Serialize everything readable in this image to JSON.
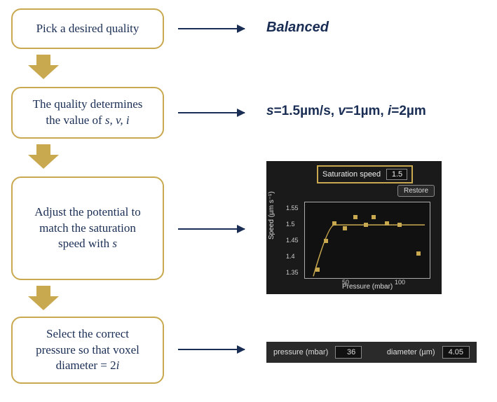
{
  "colors": {
    "box_border": "#c9a94f",
    "box_bg": "#ffffff",
    "text_primary": "#1a2e55",
    "arrow_fill": "#c9a94f",
    "connector": "#1a2e55",
    "panel_bg": "#1a1a1a",
    "panel_bg2": "#2a2a2a",
    "plot_bg": "#111111",
    "marker": "#c9a94f",
    "tick_text": "#cccccc"
  },
  "boxes": {
    "b1": "Pick a desired quality",
    "b2": "The quality determines the value of s, v, i",
    "b3": "Adjust the potential to match the saturation speed with s",
    "b4": "Select the correct pressure so that voxel diameter = 2i"
  },
  "results": {
    "r1": "Balanced",
    "r2_parts": {
      "s_lbl": "s",
      "s_eq": "=1.5µm/s, ",
      "v_lbl": "v",
      "v_eq": "=1µm, ",
      "i_lbl": "i",
      "i_eq": "=2µm"
    }
  },
  "chart": {
    "sat_label": "Saturation speed",
    "sat_value": "1.5",
    "restore": "Restore",
    "xlabel": "Pressure (mbar)",
    "ylabel": "Speed (µm s⁻¹)",
    "xlim": [
      10,
      130
    ],
    "ylim": [
      1.33,
      1.57
    ],
    "xticks": [
      50,
      100
    ],
    "yticks": [
      1.35,
      1.4,
      1.45,
      1.5,
      1.55
    ],
    "points": [
      {
        "x": 22,
        "y": 1.36
      },
      {
        "x": 30,
        "y": 1.45
      },
      {
        "x": 38,
        "y": 1.505
      },
      {
        "x": 48,
        "y": 1.49
      },
      {
        "x": 58,
        "y": 1.525
      },
      {
        "x": 68,
        "y": 1.5
      },
      {
        "x": 75,
        "y": 1.525
      },
      {
        "x": 88,
        "y": 1.505
      },
      {
        "x": 100,
        "y": 1.5
      },
      {
        "x": 118,
        "y": 1.41
      }
    ],
    "curve_sat_y": 1.5,
    "curve_knee_x": 38
  },
  "bottom": {
    "pressure_label": "pressure (mbar)",
    "pressure_value": "36",
    "diameter_label": "diameter (µm)",
    "diameter_value": "4.05"
  }
}
